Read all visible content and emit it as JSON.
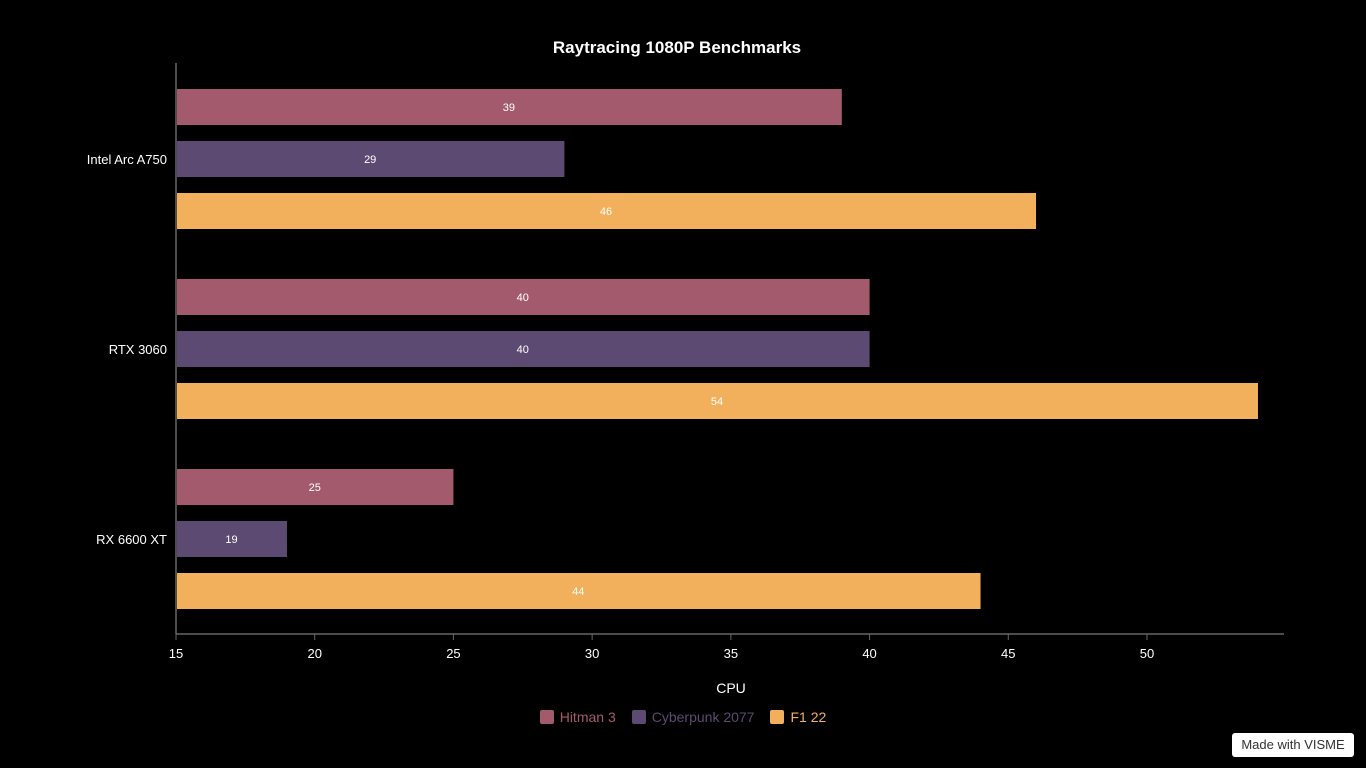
{
  "chart_data": {
    "type": "bar",
    "orientation": "horizontal",
    "title": "Raytracing 1080P Benchmarks",
    "xlabel": "CPU",
    "ylabel": "",
    "categories": [
      "Intel Arc A750",
      "RTX 3060",
      "RX 6600 XT"
    ],
    "series": [
      {
        "name": "Hitman 3",
        "color": "#a35a6c",
        "values": [
          39,
          40,
          25
        ]
      },
      {
        "name": "Cyberpunk 2077",
        "color": "#5c4a72",
        "values": [
          29,
          40,
          19
        ]
      },
      {
        "name": "F1 22",
        "color": "#f2b05c",
        "values": [
          46,
          54,
          44
        ]
      }
    ],
    "xlim": [
      15,
      55
    ],
    "xticks": [
      15,
      20,
      25,
      30,
      35,
      40,
      45,
      50
    ],
    "grid": false,
    "legend": "bottom-center"
  },
  "badge": {
    "label": "Made with VISME"
  }
}
